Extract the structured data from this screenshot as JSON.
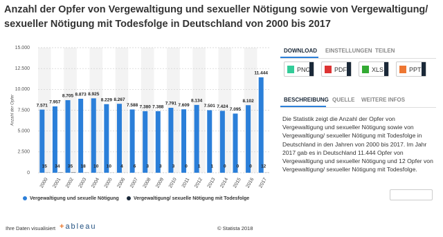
{
  "chart_data": {
    "type": "bar",
    "title": "Anzahl der Opfer von Vergewaltigung und sexueller Nötigung sowie von Vergewaltigung/ sexueller Nötigung mit Todesfolge in Deutschland von 2000 bis 2017",
    "y_label": "Anzahl der Opfer",
    "categories": [
      "2000",
      "2001",
      "2002",
      "2003",
      "2004",
      "2005",
      "2006",
      "2007",
      "2008",
      "2009",
      "2010",
      "2011",
      "2012",
      "2013",
      "2014",
      "2015",
      "2016",
      "2017"
    ],
    "series": [
      {
        "name": "Vergewaltigung und sexuelle Nötigung",
        "color": "#2b7fd9",
        "values": [
          7571,
          7957,
          8705,
          8873,
          8925,
          8229,
          8267,
          7588,
          7380,
          7388,
          7791,
          7609,
          8134,
          7501,
          7424,
          7095,
          8102,
          11444
        ],
        "value_labels": [
          "7.571",
          "7.957",
          "8.705",
          "8.873",
          "8.925",
          "8.229",
          "8.267",
          "7.588",
          "7.380",
          "7.388",
          "7.791",
          "7.609",
          "8.134",
          "7.501",
          "7.424",
          "7.095",
          "8.102",
          "11.444"
        ]
      },
      {
        "name": "Vergewaltigung/ sexuelle Nötigung mit Todesfolge",
        "color": "#1a2838",
        "values": [
          15,
          34,
          35,
          18,
          10,
          10,
          4,
          6,
          3,
          3,
          3,
          0,
          1,
          1,
          0,
          0,
          0,
          12
        ]
      }
    ],
    "ylim": [
      0,
      15000
    ],
    "yticks": [
      {
        "value": 0,
        "label": "0"
      },
      {
        "value": 2500,
        "label": "2.500"
      },
      {
        "value": 5000,
        "label": "5.000"
      },
      {
        "value": 7500,
        "label": "7.500"
      },
      {
        "value": 10000,
        "label": "10.000"
      },
      {
        "value": 12500,
        "label": "12.500"
      },
      {
        "value": 15000,
        "label": "15.000"
      }
    ],
    "grid": true
  },
  "panel": {
    "tabs": [
      "DOWNLOAD",
      "EINSTELLUNGEN",
      "TEILEN"
    ],
    "buttons": [
      "PNG",
      "PDF",
      "XLS",
      "PPT"
    ],
    "info_tabs": [
      "BESCHREIBUNG",
      "QUELLE",
      "WEITERE INFOS"
    ],
    "description": "Die Statistik zeigt die Anzahl der Opfer von Vergewaltigung und sexueller Nötigung sowie von Vergewaltigung/ sexueller Nötigung mit Todesfolge in Deutschland in den Jahren von 2000 bis 2017. Im Jahr 2017 gab es in Deutschland 11.444 Opfer von Vergewaltigung und sexueller Nötigung und 12 Opfer von Vergewaltigung/ sexueller Nötigung mit Todesfolge."
  },
  "footer": {
    "left": "Ihre Daten visualisiert",
    "brand": "ableau",
    "copyright": "© Statista 2018"
  }
}
